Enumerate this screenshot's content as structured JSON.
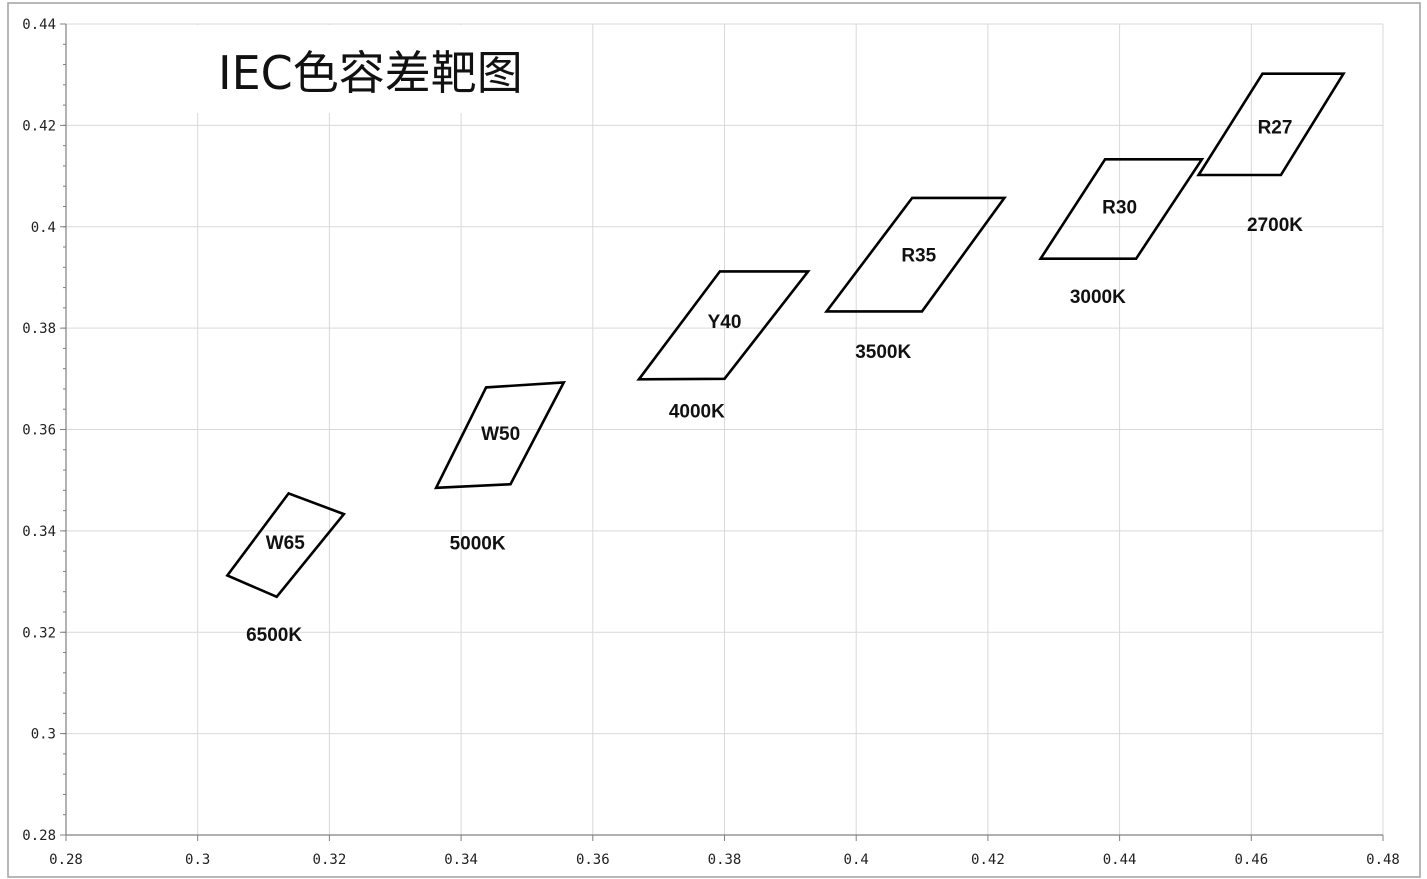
{
  "chart_data": {
    "type": "scatter",
    "title": "IEC色容差靶图",
    "xlabel": "",
    "ylabel": "",
    "xlim": [
      0.28,
      0.48
    ],
    "ylim": [
      0.28,
      0.44
    ],
    "grid": true,
    "x_ticks": [
      "0.28",
      "0.3",
      "0.32",
      "0.34",
      "0.36",
      "0.38",
      "0.4",
      "0.42",
      "0.44",
      "0.46",
      "0.48"
    ],
    "y_ticks": [
      "0.28",
      "0.3",
      "0.32",
      "0.34",
      "0.36",
      "0.38",
      "0.4",
      "0.42",
      "0.44"
    ],
    "regions": [
      {
        "name": "W65",
        "cct": "6500K",
        "polygon": [
          [
            0.3045,
            0.3312
          ],
          [
            0.3138,
            0.3474
          ],
          [
            0.3222,
            0.3433
          ],
          [
            0.312,
            0.327
          ]
        ],
        "label_at": [
          0.3133,
          0.3378
        ],
        "cct_at": [
          0.3116,
          0.3197
        ]
      },
      {
        "name": "W50",
        "cct": "5000K",
        "polygon": [
          [
            0.3362,
            0.3485
          ],
          [
            0.3438,
            0.3683
          ],
          [
            0.3556,
            0.3693
          ],
          [
            0.3475,
            0.3492
          ]
        ],
        "label_at": [
          0.346,
          0.3593
        ],
        "cct_at": [
          0.3425,
          0.3377
        ]
      },
      {
        "name": "Y40",
        "cct": "4000K",
        "polygon": [
          [
            0.367,
            0.3699
          ],
          [
            0.3793,
            0.3912
          ],
          [
            0.3927,
            0.3912
          ],
          [
            0.38,
            0.37
          ]
        ],
        "label_at": [
          0.38,
          0.3814
        ],
        "cct_at": [
          0.3758,
          0.3637
        ]
      },
      {
        "name": "R35",
        "cct": "3500K",
        "polygon": [
          [
            0.3955,
            0.3833
          ],
          [
            0.4085,
            0.4057
          ],
          [
            0.4225,
            0.4057
          ],
          [
            0.41,
            0.3833
          ]
        ],
        "label_at": [
          0.4095,
          0.3945
        ],
        "cct_at": [
          0.4041,
          0.3755
        ]
      },
      {
        "name": "R30",
        "cct": "3000K",
        "polygon": [
          [
            0.428,
            0.3937
          ],
          [
            0.4378,
            0.4133
          ],
          [
            0.4525,
            0.4133
          ],
          [
            0.4425,
            0.3937
          ]
        ],
        "label_at": [
          0.44,
          0.404
        ],
        "cct_at": [
          0.4367,
          0.3863
        ]
      },
      {
        "name": "R27",
        "cct": "2700K",
        "polygon": [
          [
            0.452,
            0.4102
          ],
          [
            0.4617,
            0.4302
          ],
          [
            0.474,
            0.4302
          ],
          [
            0.4645,
            0.4102
          ]
        ],
        "label_at": [
          0.4636,
          0.4198
        ],
        "cct_at": [
          0.4636,
          0.4005
        ]
      }
    ]
  },
  "colors": {
    "background": "#ffffff",
    "grid": "#d9d9d9",
    "axis": "#808080",
    "outline": "#000000",
    "frame": "#a0a0a0"
  }
}
